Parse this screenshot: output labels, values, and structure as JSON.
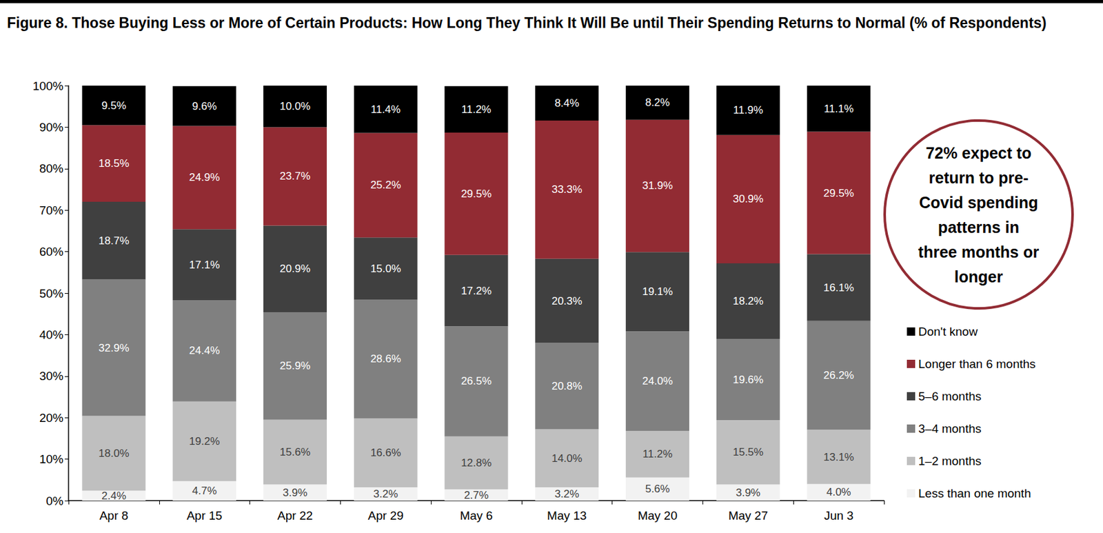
{
  "chart_data": {
    "type": "bar",
    "title": "Figure 8. Those Buying Less or More of Certain Products: How Long They Think It Will Be until Their Spending Returns to Normal (% of Respondents)",
    "annotation": "72% expect to\nreturn to pre-\nCovid spending\npatterns in\nthree months or\nlonger",
    "categories": [
      "Apr 8",
      "Apr 15",
      "Apr 22",
      "Apr 29",
      "May 6",
      "May 13",
      "May 20",
      "May 27",
      "Jun 3"
    ],
    "series": [
      {
        "name": "Less than one month",
        "color": "#f2f2f2",
        "values": [
          2.4,
          4.7,
          3.9,
          3.2,
          2.7,
          3.2,
          5.6,
          3.9,
          4.0
        ],
        "value_labels": [
          "2.4%",
          "4.7%",
          "3.9%",
          "3.2%",
          "2.7%",
          "3.2%",
          "5.6%",
          "3.9%",
          "4.0%"
        ]
      },
      {
        "name": "1–2 months",
        "color": "#bfbfbf",
        "values": [
          18.0,
          19.2,
          15.6,
          16.6,
          12.8,
          14.0,
          11.2,
          15.5,
          13.1
        ],
        "value_labels": [
          "18.0%",
          "19.2%",
          "15.6%",
          "16.6%",
          "12.8%",
          "14.0%",
          "11.2%",
          "15.5%",
          "13.1%"
        ]
      },
      {
        "name": "3–4 months",
        "color": "#808080",
        "values": [
          32.9,
          24.4,
          25.9,
          28.6,
          26.5,
          20.8,
          24.0,
          19.6,
          26.2
        ],
        "value_labels": [
          "32.9%",
          "24.4%",
          "25.9%",
          "28.6%",
          "26.5%",
          "20.8%",
          "24.0%",
          "19.6%",
          "26.2%"
        ]
      },
      {
        "name": "5–6 months",
        "color": "#404040",
        "values": [
          18.7,
          17.1,
          20.9,
          15.0,
          17.2,
          20.3,
          19.1,
          18.2,
          16.1
        ],
        "value_labels": [
          "18.7%",
          "17.1%",
          "20.9%",
          "15.0%",
          "17.2%",
          "20.3%",
          "19.1%",
          "18.2%",
          "16.1%"
        ]
      },
      {
        "name": "Longer than 6 months",
        "color": "#922b33",
        "values": [
          18.5,
          24.9,
          23.7,
          25.2,
          29.5,
          33.3,
          31.9,
          30.9,
          29.5
        ],
        "value_labels": [
          "18.5%",
          "24.9%",
          "23.7%",
          "25.2%",
          "29.5%",
          "33.3%",
          "31.9%",
          "30.9%",
          "29.5%"
        ]
      },
      {
        "name": "Don't know",
        "color": "#000000",
        "values": [
          9.5,
          9.6,
          10.0,
          11.4,
          11.2,
          8.4,
          8.2,
          11.9,
          11.1
        ],
        "value_labels": [
          "9.5%",
          "9.6%",
          "10.0%",
          "11.4%",
          "11.2%",
          "8.4%",
          "8.2%",
          "11.9%",
          "11.1%"
        ]
      }
    ],
    "ylim": [
      0,
      100
    ],
    "yticks": [
      {
        "value": 0,
        "label": "0%"
      },
      {
        "value": 10,
        "label": "10%"
      },
      {
        "value": 20,
        "label": "20%"
      },
      {
        "value": 30,
        "label": "30%"
      },
      {
        "value": 40,
        "label": "40%"
      },
      {
        "value": 50,
        "label": "50%"
      },
      {
        "value": 60,
        "label": "60%"
      },
      {
        "value": 70,
        "label": "70%"
      },
      {
        "value": 80,
        "label": "80%"
      },
      {
        "value": 90,
        "label": "90%"
      },
      {
        "value": 100,
        "label": "100%"
      }
    ],
    "stacked": true,
    "data_labels": true,
    "legend": "right",
    "grid": false
  }
}
